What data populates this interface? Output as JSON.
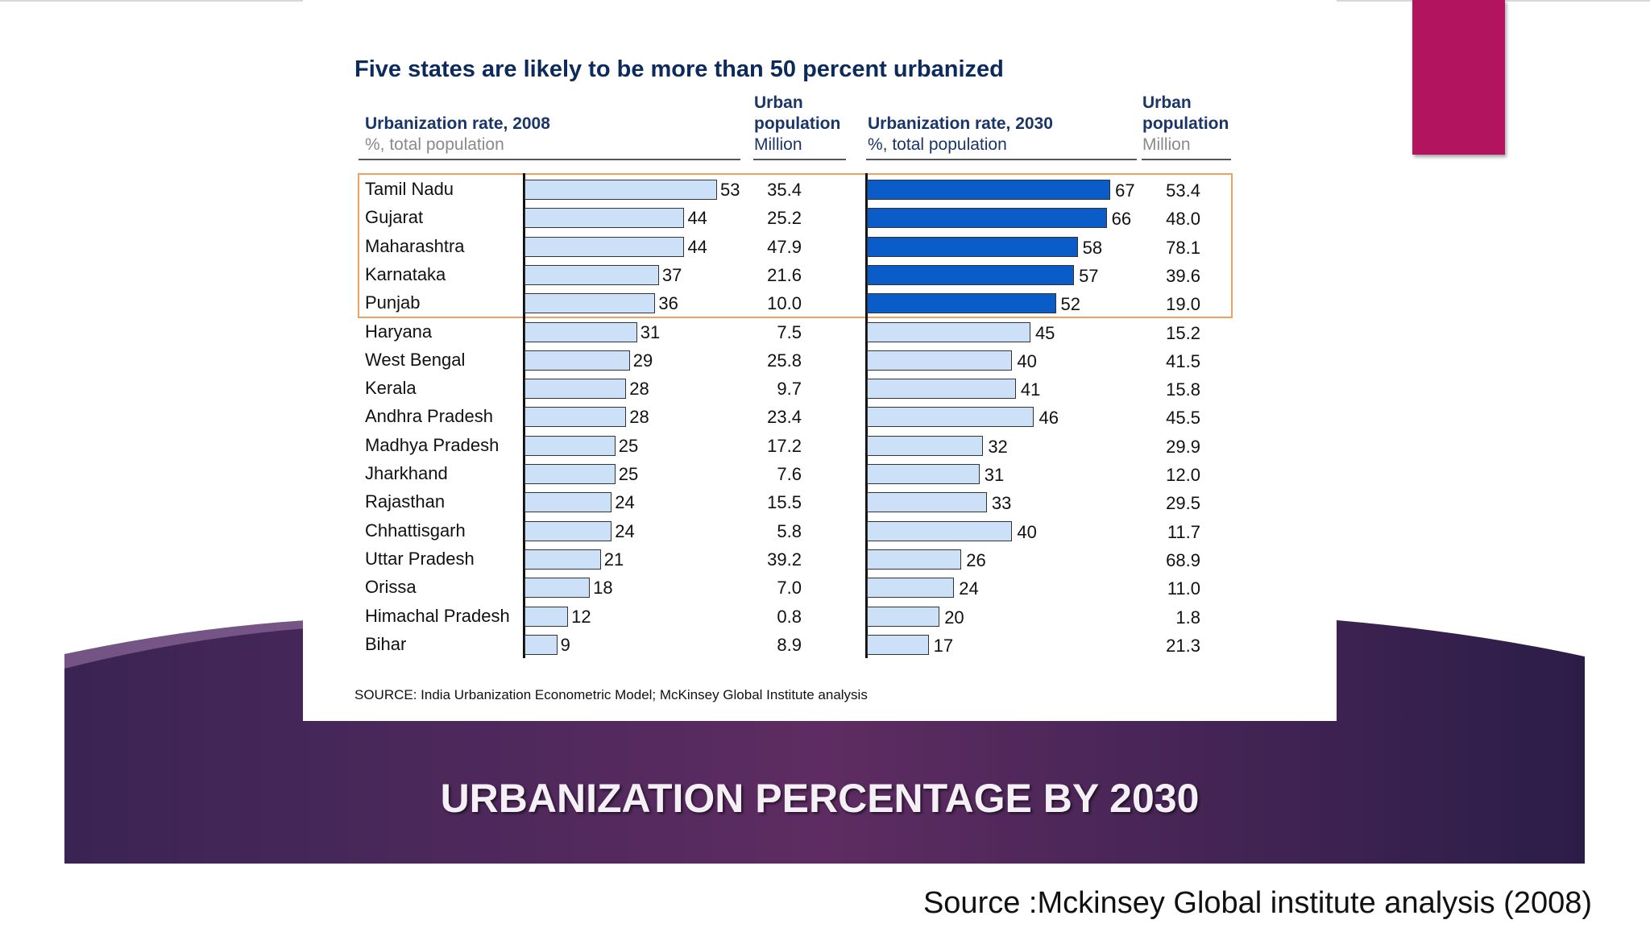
{
  "slide": {
    "title": "URBANIZATION PERCENTAGE BY 2030",
    "source": "Source :Mckinsey Global institute analysis (2008)",
    "accent_color": "#b2145f",
    "band_colors": [
      "#3a2454",
      "#5e2c62",
      "#2c1d48"
    ]
  },
  "chart_data": {
    "type": "bar",
    "orientation": "horizontal",
    "title": "Five states are likely to be more than 50 percent urbanized",
    "headers": {
      "rate_2008": "Urbanization rate, 2008",
      "rate_2008_unit": "%, total population",
      "pop_2008_line1": "Urban",
      "pop_2008_line2": "population",
      "pop_2008_unit": "Million",
      "rate_2030": "Urbanization rate, 2030",
      "rate_2030_unit": "%, total population",
      "pop_2030_line1": "Urban",
      "pop_2030_line2": "population",
      "pop_2030_unit": "Million"
    },
    "categories": [
      "Tamil Nadu",
      "Gujarat",
      "Maharashtra",
      "Karnataka",
      "Punjab",
      "Haryana",
      "West Bengal",
      "Kerala",
      "Andhra Pradesh",
      "Madhya Pradesh",
      "Jharkhand",
      "Rajasthan",
      "Chhattisgarh",
      "Uttar Pradesh",
      "Orissa",
      "Himachal Pradesh",
      "Bihar"
    ],
    "rate_2008": [
      53,
      44,
      44,
      37,
      36,
      31,
      29,
      28,
      28,
      25,
      25,
      24,
      24,
      21,
      18,
      12,
      9
    ],
    "pop_2008": [
      "35.4",
      "25.2",
      "47.9",
      "21.6",
      "10.0",
      "7.5",
      "25.8",
      "9.7",
      "23.4",
      "17.2",
      "7.6",
      "15.5",
      "5.8",
      "39.2",
      "7.0",
      "0.8",
      "8.9"
    ],
    "rate_2030": [
      67,
      66,
      58,
      57,
      52,
      45,
      40,
      41,
      46,
      32,
      31,
      33,
      40,
      26,
      24,
      20,
      17
    ],
    "pop_2030": [
      "53.4",
      "48.0",
      "78.1",
      "39.6",
      "19.0",
      "15.2",
      "41.5",
      "15.8",
      "45.5",
      "29.9",
      "12.0",
      "29.5",
      "11.7",
      "68.9",
      "11.0",
      "1.8",
      "21.3"
    ],
    "highlighted_count": 5,
    "colors": {
      "bar_light": "#cce0f7",
      "bar_highlight": "#0a5cc8",
      "highlight_box": "#f0a060",
      "title": "#0d2a5c"
    },
    "source": "SOURCE: India Urbanization Econometric Model; McKinsey Global Institute analysis"
  }
}
